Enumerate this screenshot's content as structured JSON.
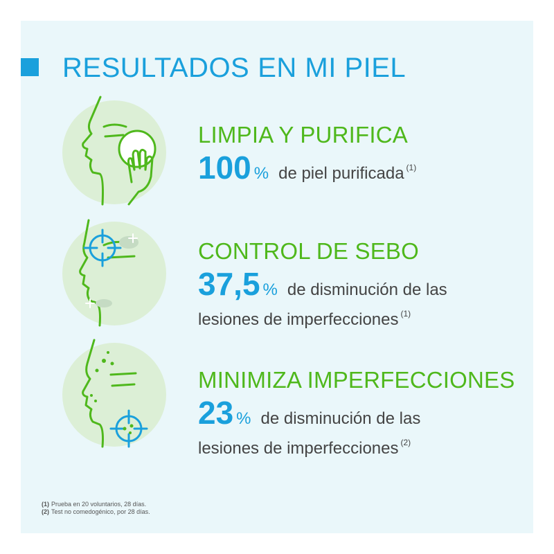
{
  "header": {
    "title_strong": "RESULTADOS",
    "title_light": "EN MI PIEL"
  },
  "results": [
    {
      "icon": "face-cleansing-pad-icon",
      "heading": "LIMPIA Y PURIFICA",
      "number": "100",
      "unit": "%",
      "description": "de piel purificada",
      "description_line2": "",
      "ref": "(1)"
    },
    {
      "icon": "face-sebum-target-icon",
      "heading": "CONTROL DE SEBO",
      "number": "37,5",
      "unit": "%",
      "description": "de disminución de las",
      "description_line2": "lesiones de imperfecciones",
      "ref": "(1)"
    },
    {
      "icon": "face-blemish-target-icon",
      "heading": "MINIMIZA IMPERFECCIONES",
      "number": "23",
      "unit": "%",
      "description": "de disminución de las",
      "description_line2": "lesiones de imperfecciones",
      "ref": "(2)"
    }
  ],
  "footnotes": [
    {
      "num": "(1)",
      "text": "Prueba en 20 voluntarios, 28 días."
    },
    {
      "num": "(2)",
      "text": "Test no comedogénico, por 28 días."
    }
  ],
  "colors": {
    "accent_blue": "#1aa0dc",
    "accent_green": "#4fb81c",
    "panel_bg": "#eaf7fa",
    "circle_bg": "#dcefd6"
  }
}
